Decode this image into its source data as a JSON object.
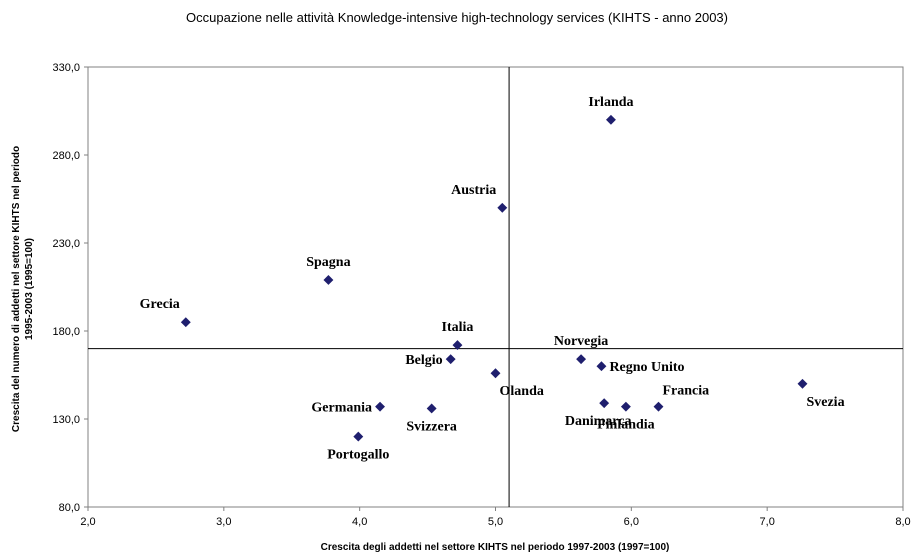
{
  "chart_data": {
    "type": "scatter",
    "title": "Occupazione nelle attività Knowledge-intensive high-technology services (KIHTS - anno 2003)",
    "xlabel": "Crescita degli addetti nel settore KIHTS nel periodo 1997-2003 (1997=100)",
    "ylabel_lines": [
      "Crescita del numero di addetti nel settore KIHTS nel periodo",
      "1995-2003 (1995=100)"
    ],
    "xlim": [
      2.0,
      8.0
    ],
    "ylim": [
      80.0,
      330.0
    ],
    "x_ticks": [
      "2,0",
      "3,0",
      "4,0",
      "5,0",
      "6,0",
      "7,0",
      "8,0"
    ],
    "y_ticks": [
      "80,0",
      "130,0",
      "180,0",
      "230,0",
      "280,0",
      "330,0"
    ],
    "reference_lines": {
      "x": 5.1,
      "y": 170.0
    },
    "marker_color": "#1f1f6e",
    "points": [
      {
        "label": "Irlanda",
        "x": 5.85,
        "y": 300.0,
        "label_pos": "above"
      },
      {
        "label": "Austria",
        "x": 5.05,
        "y": 250.0,
        "label_pos": "upper-left"
      },
      {
        "label": "Spagna",
        "x": 3.77,
        "y": 209.0,
        "label_pos": "above"
      },
      {
        "label": "Grecia",
        "x": 2.72,
        "y": 185.0,
        "label_pos": "upper-left"
      },
      {
        "label": "Italia",
        "x": 4.72,
        "y": 172.0,
        "label_pos": "above"
      },
      {
        "label": "Norvegia",
        "x": 5.63,
        "y": 164.0,
        "label_pos": "above"
      },
      {
        "label": "Belgio",
        "x": 4.67,
        "y": 164.0,
        "label_pos": "left"
      },
      {
        "label": "Regno Unito",
        "x": 5.78,
        "y": 160.0,
        "label_pos": "right"
      },
      {
        "label": "Olanda",
        "x": 5.0,
        "y": 156.0,
        "label_pos": "lower-right"
      },
      {
        "label": "Svezia",
        "x": 7.26,
        "y": 150.0,
        "label_pos": "lower-right"
      },
      {
        "label": "Germania",
        "x": 4.15,
        "y": 137.0,
        "label_pos": "left"
      },
      {
        "label": "Svizzera",
        "x": 4.53,
        "y": 136.0,
        "label_pos": "below"
      },
      {
        "label": "Danimarca",
        "x": 5.8,
        "y": 139.0,
        "label_pos": "below-left"
      },
      {
        "label": "Finlandia",
        "x": 5.96,
        "y": 137.0,
        "label_pos": "below"
      },
      {
        "label": "Francia",
        "x": 6.2,
        "y": 137.0,
        "label_pos": "upper-right"
      },
      {
        "label": "Portogallo",
        "x": 3.99,
        "y": 120.0,
        "label_pos": "below"
      }
    ]
  }
}
